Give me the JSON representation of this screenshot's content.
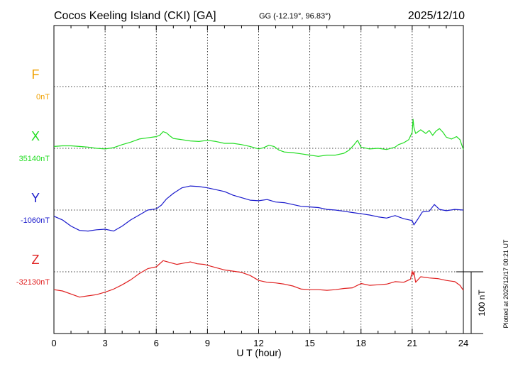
{
  "header": {
    "station": "Cocos Keeling Island (CKI)  [GA]",
    "coords": "GG (-12.19°,  96.83°)",
    "date": "2025/12/10"
  },
  "plotted_note": "Plotted at 2025/12/17 00:21 UT",
  "chart_data": {
    "type": "line",
    "title": "Cocos Keeling Island (CKI)  [GA]",
    "xlabel": "U T (hour)",
    "xlim": [
      0,
      24
    ],
    "xticks": [
      0,
      3,
      6,
      9,
      12,
      15,
      18,
      21,
      24
    ],
    "xtick_labels": [
      "0",
      "3",
      "6",
      "9",
      "12",
      "15",
      "18",
      "21",
      "24"
    ],
    "scale_bar_nT": 100,
    "scale_label": "100 nT",
    "grid": true,
    "series": [
      {
        "name": "F",
        "baseline_label": "0nT",
        "color": "#f0a000",
        "baseline_nT": 0,
        "hours": [],
        "values": []
      },
      {
        "name": "X",
        "baseline_label": "35140nT",
        "color": "#22dd22",
        "baseline_nT": 35140,
        "hours": [
          0,
          0.5,
          1.0,
          1.5,
          2.0,
          2.5,
          3.0,
          3.5,
          4.0,
          4.5,
          5.0,
          5.5,
          6.0,
          6.2,
          6.4,
          6.6,
          6.8,
          7.0,
          7.5,
          8.0,
          8.5,
          9.0,
          9.5,
          10.0,
          10.5,
          11.0,
          11.5,
          12.0,
          12.3,
          12.6,
          12.9,
          13.2,
          13.5,
          14.0,
          14.5,
          15.0,
          15.5,
          16.0,
          16.5,
          17.0,
          17.3,
          17.6,
          17.8,
          18.0,
          18.5,
          19.0,
          19.5,
          20.0,
          20.2,
          20.5,
          20.8,
          21.0,
          21.05,
          21.1,
          21.2,
          21.5,
          21.8,
          22.0,
          22.2,
          22.4,
          22.6,
          22.8,
          23.0,
          23.3,
          23.6,
          23.8,
          24.0
        ],
        "values": [
          3,
          4,
          4,
          3,
          2,
          0,
          -1,
          1,
          6,
          10,
          15,
          17,
          19,
          21,
          27,
          25,
          20,
          16,
          14,
          12,
          11,
          13,
          11,
          8,
          8,
          6,
          3,
          -1,
          1,
          5,
          3,
          -3,
          -6,
          -7,
          -9,
          -11,
          -13,
          -11,
          -11,
          -8,
          -3,
          6,
          13,
          2,
          -1,
          0,
          -2,
          2,
          6,
          9,
          14,
          26,
          47,
          34,
          24,
          30,
          24,
          29,
          21,
          28,
          32,
          26,
          18,
          15,
          19,
          14,
          -2
        ]
      },
      {
        "name": "Y",
        "baseline_label": "-1060nT",
        "color": "#1a1acc",
        "baseline_nT": -1060,
        "hours": [
          0,
          0.5,
          1.0,
          1.5,
          2.0,
          2.5,
          3.0,
          3.5,
          4.0,
          4.5,
          5.0,
          5.5,
          6.0,
          6.3,
          6.6,
          7.0,
          7.5,
          8.0,
          8.5,
          9.0,
          9.5,
          10.0,
          10.5,
          11.0,
          11.5,
          12.0,
          12.5,
          13.0,
          13.5,
          14.0,
          14.5,
          15.0,
          15.5,
          16.0,
          16.5,
          17.0,
          17.5,
          18.0,
          18.5,
          19.0,
          19.5,
          20.0,
          20.5,
          21.0,
          21.1,
          21.3,
          21.6,
          22.0,
          22.3,
          22.6,
          23.0,
          23.5,
          24.0
        ],
        "values": [
          -10,
          -16,
          -26,
          -33,
          -34,
          -32,
          -31,
          -34,
          -26,
          -16,
          -8,
          0,
          2,
          8,
          18,
          27,
          36,
          39,
          38,
          36,
          33,
          30,
          24,
          20,
          16,
          15,
          17,
          13,
          12,
          9,
          6,
          5,
          4,
          1,
          0,
          -2,
          -4,
          -6,
          -8,
          -11,
          -13,
          -9,
          -14,
          -17,
          -24,
          -16,
          -3,
          -2,
          9,
          1,
          -1,
          1,
          0
        ]
      },
      {
        "name": "Z",
        "baseline_label": "-32130nT",
        "color": "#e02020",
        "baseline_nT": -32130,
        "hours": [
          0,
          0.5,
          1.0,
          1.5,
          2.0,
          2.5,
          3.0,
          3.5,
          4.0,
          4.5,
          5.0,
          5.5,
          6.0,
          6.4,
          6.8,
          7.2,
          7.6,
          8.0,
          8.4,
          8.8,
          9.2,
          9.6,
          10.0,
          10.5,
          11.0,
          11.5,
          12.0,
          12.5,
          13.0,
          13.5,
          14.0,
          14.5,
          15.0,
          15.5,
          16.0,
          16.5,
          17.0,
          17.5,
          18.0,
          18.5,
          19.0,
          19.5,
          20.0,
          20.5,
          20.9,
          21.0,
          21.05,
          21.1,
          21.2,
          21.5,
          22.0,
          22.5,
          23.0,
          23.5,
          23.8,
          24.0
        ],
        "values": [
          -29,
          -31,
          -36,
          -41,
          -39,
          -37,
          -33,
          -28,
          -21,
          -13,
          -3,
          5,
          8,
          18,
          15,
          12,
          14,
          16,
          13,
          12,
          9,
          6,
          3,
          1,
          -1,
          -6,
          -14,
          -17,
          -18,
          -20,
          -23,
          -28,
          -29,
          -29,
          -30,
          -29,
          -27,
          -26,
          -19,
          -22,
          -21,
          -20,
          -16,
          -17,
          -12,
          1,
          -5,
          0,
          -17,
          -8,
          -10,
          -11,
          -14,
          -16,
          -22,
          -30
        ]
      }
    ]
  },
  "icons": {
    "scale_bar": "vertical-scale-bar"
  }
}
